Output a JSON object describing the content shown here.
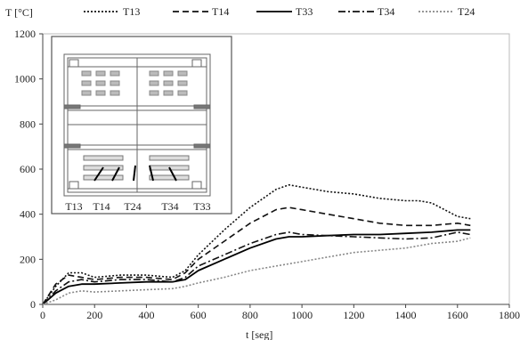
{
  "chart_data": {
    "type": "line",
    "ylabel": "T [°C]",
    "xlabel": "t [seg]",
    "xlim": [
      0,
      1800
    ],
    "ylim": [
      0,
      1200
    ],
    "x_ticks": [
      0,
      200,
      400,
      600,
      800,
      1000,
      1200,
      1400,
      1600,
      1800
    ],
    "y_ticks": [
      0,
      200,
      400,
      600,
      800,
      1000,
      1200
    ],
    "grid": false,
    "legend_placement": "top",
    "series": [
      {
        "name": "T13",
        "dash": "dotted",
        "color": "#111111",
        "x": [
          0,
          50,
          100,
          150,
          200,
          300,
          400,
          500,
          550,
          600,
          700,
          800,
          900,
          950,
          1000,
          1100,
          1200,
          1300,
          1400,
          1450,
          1500,
          1600,
          1650
        ],
        "y": [
          0,
          80,
          140,
          140,
          120,
          130,
          130,
          120,
          150,
          220,
          330,
          430,
          510,
          530,
          520,
          500,
          490,
          470,
          460,
          460,
          450,
          390,
          380
        ]
      },
      {
        "name": "T14",
        "dash": "dashed",
        "color": "#111111",
        "x": [
          0,
          50,
          100,
          150,
          200,
          300,
          400,
          500,
          550,
          600,
          700,
          800,
          900,
          950,
          1000,
          1100,
          1200,
          1300,
          1400,
          1500,
          1600,
          1650
        ],
        "y": [
          0,
          90,
          130,
          120,
          110,
          120,
          120,
          110,
          140,
          200,
          280,
          360,
          420,
          430,
          420,
          400,
          380,
          360,
          350,
          350,
          360,
          350
        ]
      },
      {
        "name": "T33",
        "dash": "solid",
        "color": "#000000",
        "x": [
          0,
          50,
          100,
          150,
          200,
          300,
          400,
          500,
          550,
          600,
          700,
          800,
          900,
          950,
          1000,
          1100,
          1200,
          1300,
          1400,
          1500,
          1600,
          1650
        ],
        "y": [
          0,
          50,
          80,
          90,
          90,
          95,
          100,
          100,
          110,
          150,
          200,
          250,
          290,
          300,
          300,
          305,
          310,
          310,
          315,
          320,
          330,
          330
        ]
      },
      {
        "name": "T34",
        "dash": "dash-dot",
        "color": "#111111",
        "x": [
          0,
          50,
          100,
          150,
          200,
          300,
          400,
          500,
          550,
          600,
          700,
          800,
          900,
          950,
          1000,
          1100,
          1200,
          1300,
          1400,
          1500,
          1600,
          1650
        ],
        "y": [
          0,
          60,
          100,
          110,
          100,
          110,
          110,
          100,
          120,
          170,
          220,
          270,
          310,
          320,
          310,
          305,
          300,
          295,
          290,
          295,
          320,
          310
        ]
      },
      {
        "name": "T24",
        "dash": "dotted",
        "color": "#888888",
        "x": [
          0,
          50,
          100,
          150,
          200,
          300,
          400,
          500,
          550,
          600,
          700,
          800,
          900,
          1000,
          1100,
          1200,
          1300,
          1400,
          1500,
          1600,
          1650
        ],
        "y": [
          0,
          20,
          50,
          60,
          55,
          60,
          65,
          70,
          80,
          95,
          120,
          150,
          170,
          190,
          210,
          230,
          240,
          250,
          270,
          280,
          295
        ]
      }
    ]
  },
  "inset": {
    "labels": [
      "T13",
      "T14",
      "T24",
      "T34",
      "T33"
    ]
  }
}
